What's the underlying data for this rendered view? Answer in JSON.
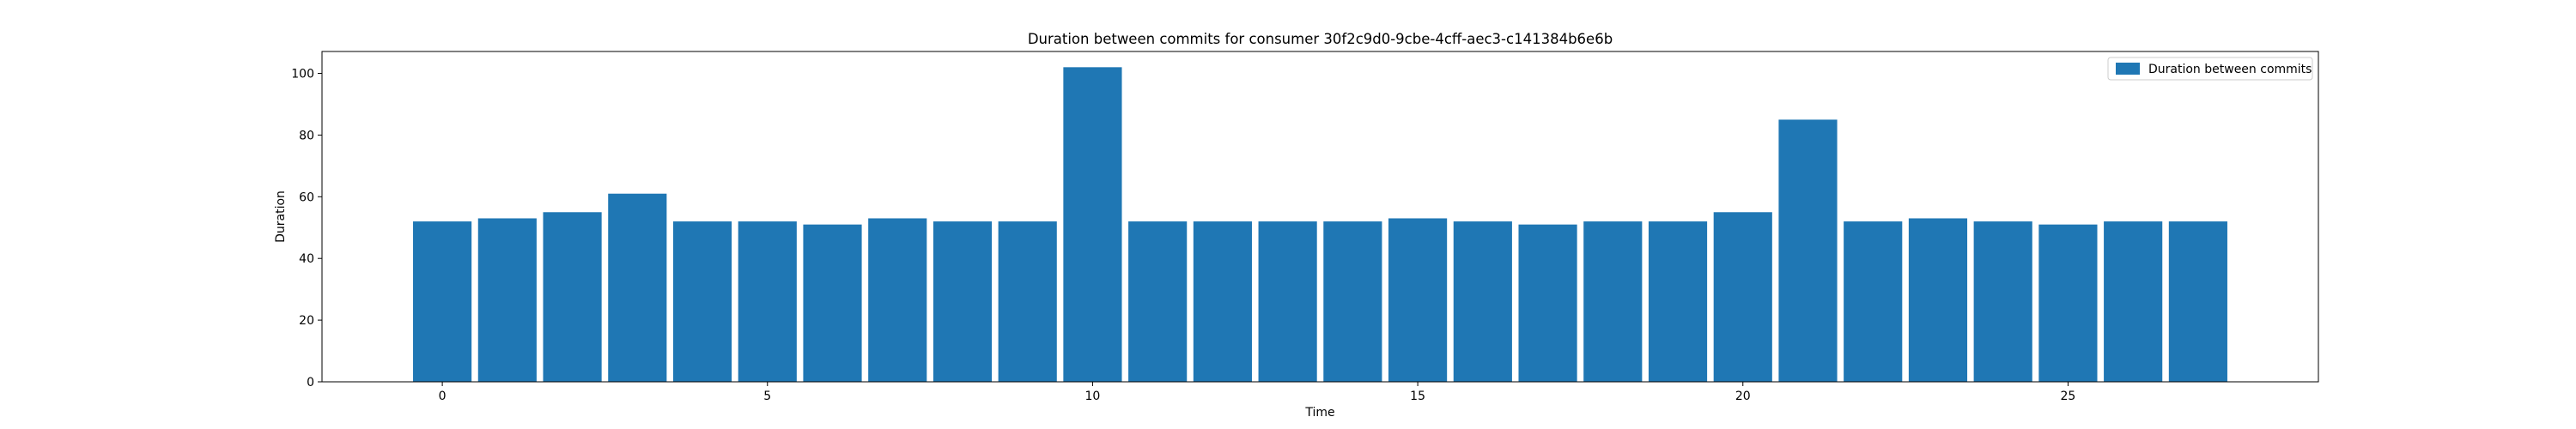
{
  "chart_data": {
    "type": "bar",
    "title": "Duration between commits for consumer 30f2c9d0-9cbe-4cff-aec3-c141384b6e6b",
    "xlabel": "Time",
    "ylabel": "Duration",
    "x": [
      0,
      1,
      2,
      3,
      4,
      5,
      6,
      7,
      8,
      9,
      10,
      11,
      12,
      13,
      14,
      15,
      16,
      17,
      18,
      19,
      20,
      21,
      22,
      23,
      24,
      25,
      26,
      27
    ],
    "values": [
      52,
      53,
      55,
      61,
      52,
      52,
      51,
      53,
      52,
      52,
      102,
      52,
      52,
      52,
      52,
      53,
      52,
      51,
      52,
      52,
      55,
      85,
      52,
      53,
      52,
      51,
      52,
      52
    ],
    "xlim": [
      -1.85,
      28.85
    ],
    "ylim": [
      0,
      107.1
    ],
    "xticks": [
      0,
      5,
      10,
      15,
      20,
      25
    ],
    "yticks": [
      0,
      20,
      40,
      60,
      80,
      100
    ],
    "series_name": "Duration between commits",
    "bar_color": "#1f77b4",
    "legend_position": "top-right",
    "grid": false
  }
}
